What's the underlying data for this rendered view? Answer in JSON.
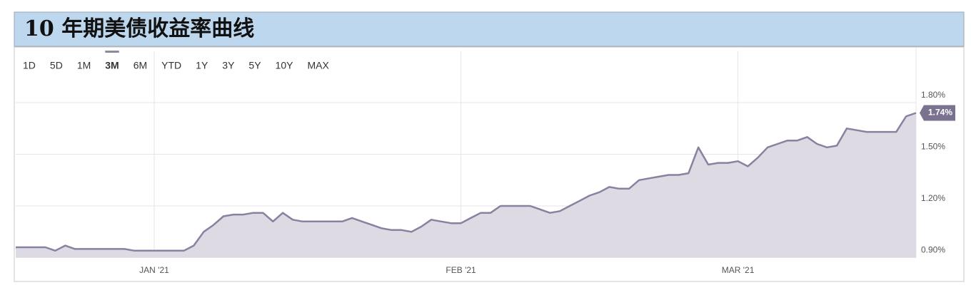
{
  "chart_data": {
    "type": "area",
    "title": "10 年期美债收益率曲线",
    "range_buttons": [
      "1D",
      "5D",
      "1M",
      "3M",
      "6M",
      "YTD",
      "1Y",
      "3Y",
      "5Y",
      "10Y",
      "MAX"
    ],
    "selected_range": "3M",
    "categories": [
      null,
      null,
      null,
      null,
      null,
      null,
      null,
      null,
      null,
      null,
      null,
      null,
      null,
      null,
      "JAN '21",
      null,
      null,
      null,
      null,
      null,
      null,
      null,
      null,
      null,
      null,
      null,
      null,
      null,
      null,
      null,
      null,
      null,
      null,
      null,
      null,
      null,
      null,
      null,
      null,
      null,
      null,
      null,
      null,
      null,
      null,
      "FEB '21",
      null,
      null,
      null,
      null,
      null,
      null,
      null,
      null,
      null,
      null,
      null,
      null,
      null,
      null,
      null,
      null,
      null,
      null,
      null,
      null,
      null,
      null,
      null,
      null,
      null,
      null,
      null,
      "MAR '21",
      null,
      null,
      null,
      null,
      null,
      null,
      null,
      null,
      null,
      null,
      null,
      null,
      null,
      null,
      null,
      null,
      null,
      null
    ],
    "values": [
      0.96,
      0.96,
      0.96,
      0.96,
      0.94,
      0.97,
      0.95,
      0.95,
      0.95,
      0.95,
      0.95,
      0.95,
      0.94,
      0.94,
      0.94,
      0.94,
      0.94,
      0.94,
      0.97,
      1.05,
      1.09,
      1.14,
      1.15,
      1.15,
      1.16,
      1.16,
      1.11,
      1.16,
      1.12,
      1.11,
      1.11,
      1.11,
      1.11,
      1.11,
      1.13,
      1.11,
      1.09,
      1.07,
      1.06,
      1.06,
      1.05,
      1.08,
      1.12,
      1.11,
      1.1,
      1.1,
      1.13,
      1.16,
      1.16,
      1.2,
      1.2,
      1.2,
      1.2,
      1.18,
      1.16,
      1.17,
      1.2,
      1.23,
      1.26,
      1.28,
      1.31,
      1.3,
      1.3,
      1.35,
      1.36,
      1.37,
      1.38,
      1.38,
      1.39,
      1.54,
      1.44,
      1.45,
      1.45,
      1.46,
      1.43,
      1.48,
      1.54,
      1.56,
      1.58,
      1.58,
      1.6,
      1.56,
      1.54,
      1.55,
      1.65,
      1.64,
      1.63,
      1.63,
      1.63,
      1.63,
      1.72,
      1.74
    ],
    "value_labels": [
      null,
      null,
      null,
      null,
      null,
      null,
      null,
      null,
      null,
      null,
      null,
      null,
      null,
      null,
      null,
      null,
      null,
      null,
      null,
      null,
      null,
      null,
      null,
      null,
      null,
      null,
      null,
      null,
      null,
      null,
      null,
      null,
      null,
      null,
      null,
      null,
      null,
      null,
      null,
      null,
      null,
      null,
      null,
      null,
      null,
      null,
      null,
      null,
      null,
      null,
      null,
      null,
      null,
      null,
      null,
      null,
      null,
      null,
      null,
      null,
      null,
      null,
      null,
      null,
      null,
      null,
      null,
      null,
      null,
      null,
      null,
      null,
      null,
      null,
      null,
      null,
      null,
      null,
      null,
      null,
      null,
      null,
      null,
      null,
      null,
      null,
      null,
      null,
      null,
      null,
      null,
      "1.74%"
    ],
    "color": "#8a809f",
    "fill": "#dddae4",
    "ylim": [
      0.9,
      2.1
    ],
    "yticks": [
      {
        "value": 0.9,
        "label": "0.90%"
      },
      {
        "value": 1.2,
        "label": "1.20%"
      },
      {
        "value": 1.5,
        "label": "1.50%"
      },
      {
        "value": 1.8,
        "label": "1.80%"
      }
    ],
    "grid": true
  }
}
